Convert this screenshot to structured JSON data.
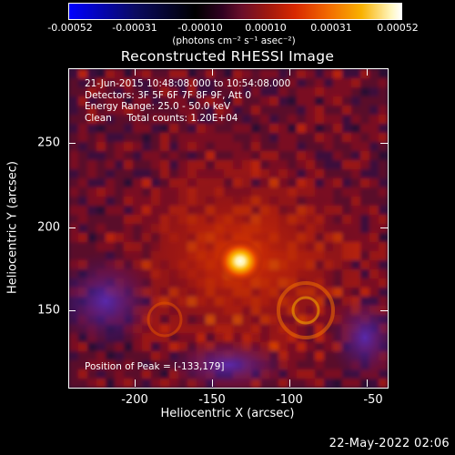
{
  "colorbar": {
    "ticks": [
      "-0.00052",
      "-0.00031",
      "-0.00010",
      "0.00010",
      "0.00031",
      "0.00052"
    ],
    "unit_label": "(photons cm⁻² s⁻¹ asec⁻²)"
  },
  "title": "Reconstructed RHESSI Image",
  "info": {
    "time_range": "21-Jun-2015 10:48:08.000 to 10:54:08.000",
    "detectors": "Detectors: 3F 5F 6F 7F 8F 9F, Att 0",
    "energy": "Energy Range: 25.0 - 50.0 keV",
    "algorithm": "Clean     Total counts: 1.20E+04"
  },
  "peak_label": "Position of Peak = [-133,179]",
  "axes": {
    "xlabel": "Heliocentric X (arcsec)",
    "ylabel": "Heliocentric Y (arcsec)",
    "xticks": [
      "-200",
      "-150",
      "-100",
      "-50"
    ],
    "yticks": [
      "250",
      "200",
      "150"
    ]
  },
  "footer_date": "22-May-2022 02:06",
  "colors": {
    "background": "#000000",
    "peak": "#fff6c8",
    "bright": "#f06000",
    "mid": "#b01810",
    "dark": "#3a0f3c",
    "low": "#4a1a90"
  }
}
